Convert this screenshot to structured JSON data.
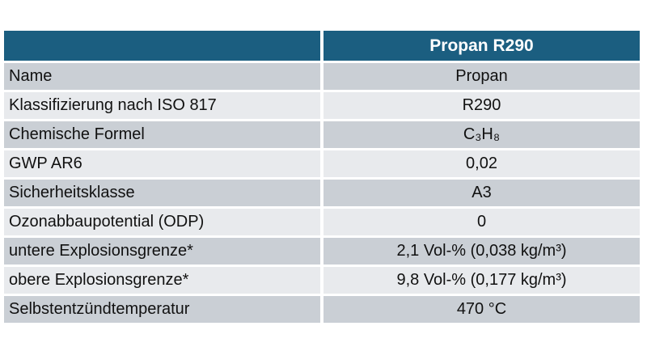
{
  "slide": {
    "background": "#ffffff"
  },
  "table": {
    "header": {
      "label_col": "",
      "value_col": "Propan R290"
    },
    "rows": [
      {
        "label": "Name",
        "value": "Propan"
      },
      {
        "label": "Klassifizierung nach ISO 817",
        "value": "R290"
      },
      {
        "label": "Chemische Formel",
        "value": "C₃H₈"
      },
      {
        "label": "GWP AR6",
        "value": "0,02"
      },
      {
        "label": "Sicherheitsklasse",
        "value": "A3"
      },
      {
        "label": "Ozonabbaupotential (ODP)",
        "value": "0"
      },
      {
        "label": "untere Explosionsgrenze*",
        "value": "2,1 Vol-% (0,038 kg/m³)"
      },
      {
        "label": "obere Explosionsgrenze*",
        "value": "9,8 Vol-% (0,177 kg/m³)"
      },
      {
        "label": "Selbstentzündtemperatur",
        "value": "470 °C"
      }
    ],
    "colors": {
      "header_bg": "#1b5e80",
      "header_text": "#ffffff",
      "row_dark": "#cacfd5",
      "row_light": "#e8eaed",
      "body_text": "#111111"
    }
  }
}
